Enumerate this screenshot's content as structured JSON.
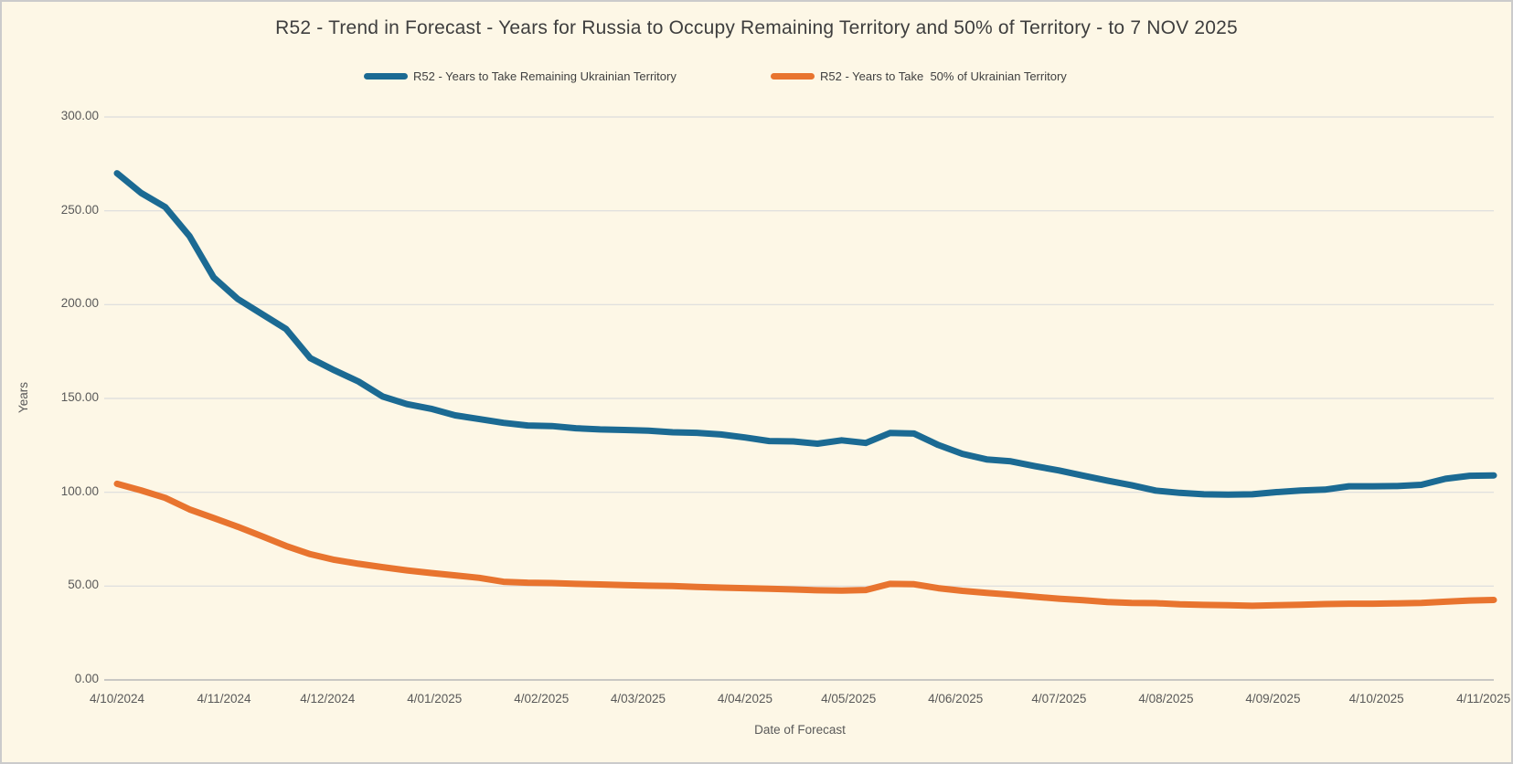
{
  "chart": {
    "title": "R52 - Trend in Forecast - Years for Russia to Occupy Remaining Territory and 50% of Territory - to 7 NOV 2025",
    "ylabel": "Years",
    "xlabel": "Date of Forecast"
  },
  "chart_data": {
    "type": "line",
    "title": "R52 - Trend in Forecast - Years for Russia to Occupy Remaining Territory and 50% of Territory - to 7 NOV 2025",
    "xlabel": "Date of Forecast",
    "ylabel": "Years",
    "ylim": [
      0,
      300
    ],
    "grid": "horizontal",
    "legend_position": "top",
    "y_ticks": [
      {
        "value": 0,
        "label": "0.00"
      },
      {
        "value": 50,
        "label": "50.00"
      },
      {
        "value": 100,
        "label": "100.00"
      },
      {
        "value": 150,
        "label": "150.00"
      },
      {
        "value": 200,
        "label": "200.00"
      },
      {
        "value": 250,
        "label": "250.00"
      },
      {
        "value": 300,
        "label": "300.00"
      }
    ],
    "x_ticks": [
      {
        "day": 0,
        "label": "4/10/2024"
      },
      {
        "day": 31,
        "label": "4/11/2024"
      },
      {
        "day": 61,
        "label": "4/12/2024"
      },
      {
        "day": 92,
        "label": "4/01/2025"
      },
      {
        "day": 123,
        "label": "4/02/2025"
      },
      {
        "day": 151,
        "label": "4/03/2025"
      },
      {
        "day": 182,
        "label": "4/04/2025"
      },
      {
        "day": 212,
        "label": "4/05/2025"
      },
      {
        "day": 243,
        "label": "4/06/2025"
      },
      {
        "day": 273,
        "label": "4/07/2025"
      },
      {
        "day": 304,
        "label": "4/08/2025"
      },
      {
        "day": 335,
        "label": "4/09/2025"
      },
      {
        "day": 365,
        "label": "4/10/2025"
      },
      {
        "day": 396,
        "label": "4/11/2025"
      }
    ],
    "x_total_days": 399,
    "point_interval_days": 7,
    "x": [
      "4/10/2024",
      "11/10/2024",
      "18/10/2024",
      "25/10/2024",
      "1/11/2024",
      "8/11/2024",
      "15/11/2024",
      "22/11/2024",
      "29/11/2024",
      "6/12/2024",
      "13/12/2024",
      "20/12/2024",
      "27/12/2024",
      "3/01/2025",
      "10/01/2025",
      "17/01/2025",
      "24/01/2025",
      "31/01/2025",
      "7/02/2025",
      "14/02/2025",
      "21/02/2025",
      "28/02/2025",
      "7/03/2025",
      "14/03/2025",
      "21/03/2025",
      "28/03/2025",
      "4/04/2025",
      "11/04/2025",
      "18/04/2025",
      "25/04/2025",
      "2/05/2025",
      "9/05/2025",
      "16/05/2025",
      "23/05/2025",
      "30/05/2025",
      "6/06/2025",
      "13/06/2025",
      "20/06/2025",
      "27/06/2025",
      "4/07/2025",
      "11/07/2025",
      "18/07/2025",
      "25/07/2025",
      "1/08/2025",
      "8/08/2025",
      "15/08/2025",
      "22/08/2025",
      "29/08/2025",
      "5/09/2025",
      "12/09/2025",
      "19/09/2025",
      "26/09/2025",
      "3/10/2025",
      "10/10/2025",
      "17/10/2025",
      "24/10/2025",
      "31/10/2025",
      "7/11/2025"
    ],
    "series": [
      {
        "name": "R52 - Years to Take Remaining Ukrainian Territory",
        "color": "#1b6a93",
        "values": [
          270,
          259.5,
          252,
          236.5,
          214.5,
          203,
          195,
          187,
          171.5,
          165,
          159,
          151,
          147,
          144.5,
          141,
          139,
          137,
          135.6,
          135.3,
          134.1,
          133.5,
          133.2,
          132.8,
          132,
          131.7,
          130.8,
          129.2,
          127.3,
          127.1,
          125.9,
          127.7,
          126.3,
          131.6,
          131.3,
          125.2,
          120.5,
          117.5,
          116.5,
          113.9,
          111.6,
          108.9,
          106.2,
          103.8,
          100.9,
          99.7,
          98.9,
          98.7,
          98.9,
          100.1,
          100.9,
          101.4,
          103.2,
          103.2,
          103.3,
          104,
          107.2,
          108.8,
          109
        ]
      },
      {
        "name": "R52 - Years to Take  50% of Ukrainian Territory",
        "color": "#e8742f",
        "values": [
          104.5,
          101,
          97,
          90.9,
          86.3,
          81.6,
          76.6,
          71.4,
          67,
          64,
          61.9,
          60.1,
          58.4,
          57,
          55.7,
          54.4,
          52.3,
          51.8,
          51.6,
          51.2,
          50.9,
          50.5,
          50.2,
          50,
          49.6,
          49.2,
          48.9,
          48.6,
          48.2,
          47.8,
          47.6,
          47.9,
          51.2,
          51,
          48.9,
          47.5,
          46.4,
          45.4,
          44.3,
          43.3,
          42.5,
          41.5,
          41,
          40.9,
          40.3,
          40,
          39.8,
          39.5,
          39.8,
          40.1,
          40.4,
          40.6,
          40.6,
          40.8,
          41,
          41.7,
          42.3,
          42.6
        ]
      }
    ],
    "colors": {
      "background": "#fdf7e6",
      "gridline": "#dcdcdc",
      "axis_line": "#b8b8b8",
      "title_text": "#3e3e3e",
      "tick_text": "#595959",
      "series1": "#1b6a93",
      "series2": "#e8742f"
    }
  },
  "legend": {
    "item1": "R52 - Years to Take Remaining Ukrainian Territory",
    "item2": "R52 - Years to Take  50% of Ukrainian Territory"
  }
}
